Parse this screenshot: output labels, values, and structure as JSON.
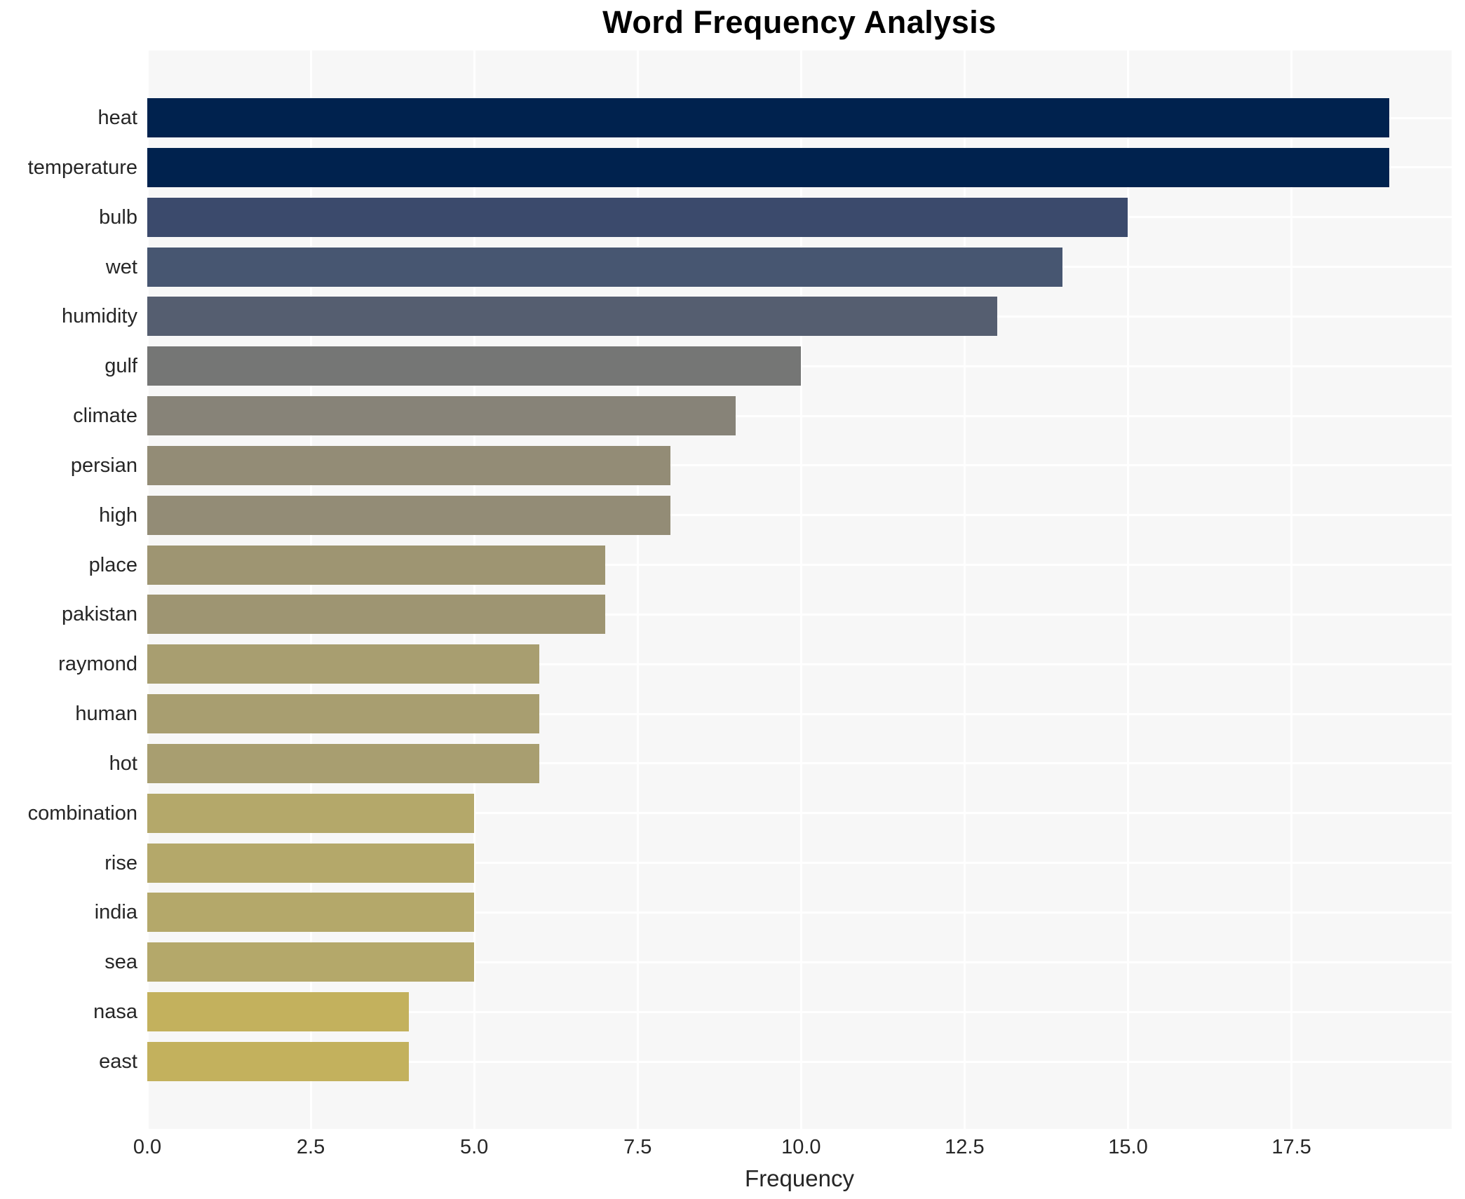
{
  "chart_data": {
    "type": "bar",
    "orientation": "horizontal",
    "title": "Word Frequency Analysis",
    "xlabel": "Frequency",
    "categories": [
      "heat",
      "temperature",
      "bulb",
      "wet",
      "humidity",
      "gulf",
      "climate",
      "persian",
      "high",
      "place",
      "pakistan",
      "raymond",
      "human",
      "hot",
      "combination",
      "rise",
      "india",
      "sea",
      "nasa",
      "east"
    ],
    "values": [
      19,
      19,
      15,
      14,
      13,
      10,
      9,
      8,
      8,
      7,
      7,
      6,
      6,
      6,
      5,
      5,
      5,
      5,
      4,
      4
    ],
    "bar_colors": [
      "#00224e",
      "#00224e",
      "#3b4a6c",
      "#475671",
      "#555e70",
      "#757675",
      "#878378",
      "#938c76",
      "#938c76",
      "#9e9572",
      "#9e9572",
      "#a89e70",
      "#a89e70",
      "#a89e70",
      "#b4a86a",
      "#b4a86a",
      "#b4a86a",
      "#b4a86a",
      "#c3b15d",
      "#c3b15d"
    ],
    "xlim": [
      0,
      19.95
    ],
    "xticks": [
      0,
      2.5,
      5,
      7.5,
      10,
      12.5,
      15,
      17.5
    ],
    "xtick_labels": [
      "0.0",
      "2.5",
      "5.0",
      "7.5",
      "10.0",
      "12.5",
      "15.0",
      "17.5"
    ],
    "grid": true,
    "legend": false,
    "colors": {
      "plot_background": "#f7f7f7",
      "grid_line": "#ffffff",
      "axis_text": "#262626",
      "title_text": "#000000"
    }
  }
}
